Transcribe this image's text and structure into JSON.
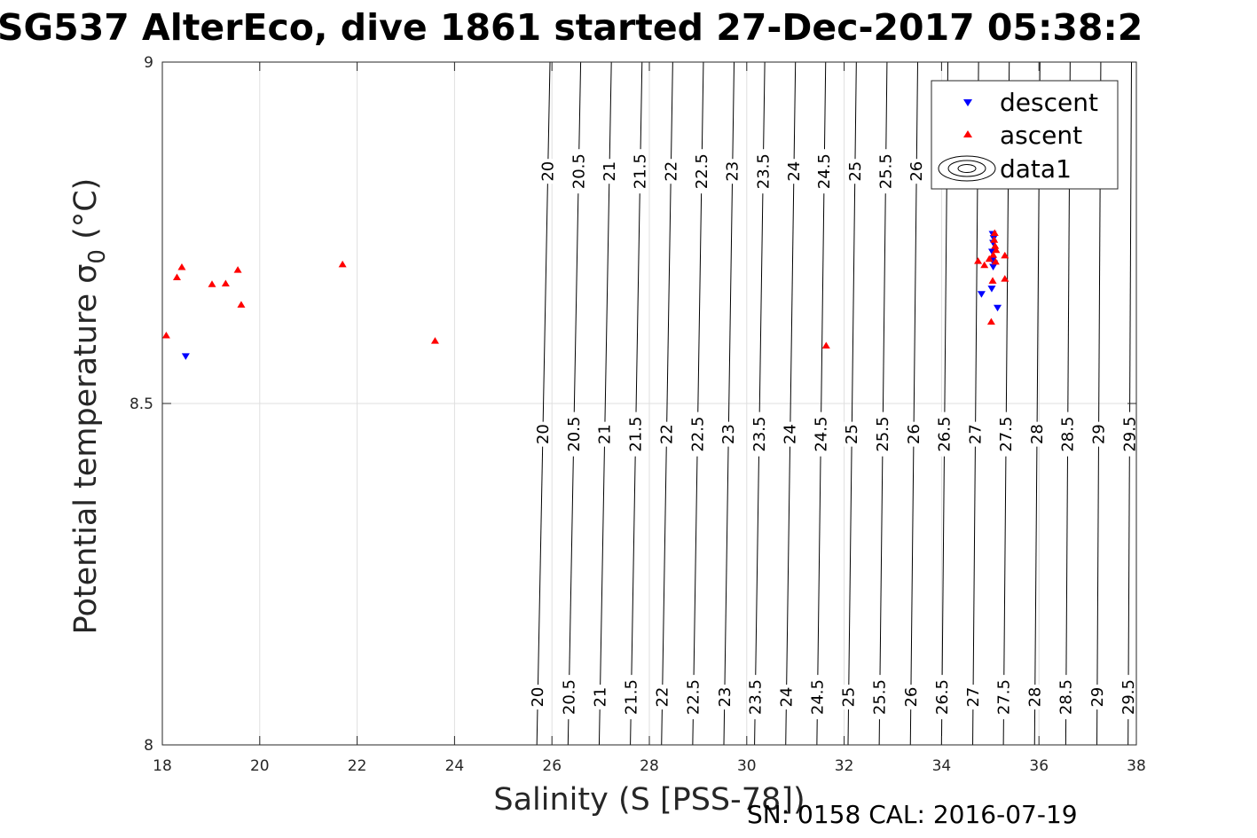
{
  "chart_data": {
    "type": "scatter",
    "title": "SG537 AlterEco, dive 1861 started 27-Dec-2017 05:38:2",
    "xlabel": "Salinity (S [PSS-78])",
    "ylabel_main": "Potential temperature ",
    "ylabel_sigma": "σ",
    "ylabel_sub": "0",
    "ylabel_unit": " (°C)",
    "xlim": [
      18,
      38
    ],
    "ylim": [
      8,
      9
    ],
    "xticks": [
      18,
      20,
      22,
      24,
      26,
      28,
      30,
      32,
      34,
      36,
      38
    ],
    "xtick_labels": [
      "18",
      "20",
      "22",
      "24",
      "26",
      "28",
      "30",
      "32",
      "34",
      "36",
      "38"
    ],
    "yticks": [
      8,
      8.5,
      9
    ],
    "ytick_labels": [
      "8",
      "8.5",
      "9"
    ],
    "grid": true,
    "legend_placement": "top-right",
    "footnote": "SN: 0158  CAL: 2016-07-19",
    "contours": {
      "levels": [
        "20",
        "20.5",
        "21",
        "21.5",
        "22",
        "22.5",
        "23",
        "23.5",
        "24",
        "24.5",
        "25",
        "25.5",
        "26",
        "26.5",
        "27",
        "27.5",
        "28",
        "28.5",
        "29",
        "29.5"
      ],
      "salinity_at_t8": [
        25.69,
        26.33,
        26.97,
        27.61,
        28.25,
        28.89,
        29.53,
        30.16,
        30.8,
        31.44,
        32.08,
        32.72,
        33.36,
        34.0,
        34.64,
        35.27,
        35.91,
        36.55,
        37.19,
        37.83
      ],
      "salinity_at_t9": [
        25.96,
        26.59,
        27.22,
        27.85,
        28.48,
        29.11,
        29.74,
        30.37,
        31.0,
        31.62,
        32.25,
        32.88,
        33.51,
        34.13,
        34.76,
        35.39,
        36.02,
        36.64,
        37.27,
        37.9
      ],
      "label_rows": [
        {
          "t": 8.07,
          "levels": [
            "20",
            "20.5",
            "21",
            "21.5",
            "22",
            "22.5",
            "23",
            "23.5",
            "24",
            "24.5",
            "25",
            "25.5",
            "26",
            "26.5",
            "27",
            "27.5",
            "28",
            "28.5",
            "29",
            "29.5"
          ]
        },
        {
          "t": 8.455,
          "levels": [
            "20",
            "20.5",
            "21",
            "21.5",
            "22",
            "22.5",
            "23",
            "23.5",
            "24",
            "24.5",
            "25",
            "25.5",
            "26",
            "26.5",
            "27",
            "27.5",
            "28",
            "28.5",
            "29",
            "29.5"
          ]
        },
        {
          "t": 8.84,
          "levels": [
            "20",
            "20.5",
            "21",
            "21.5",
            "22",
            "22.5",
            "23",
            "23.5",
            "24",
            "24.5",
            "25",
            "25.5",
            "26"
          ]
        }
      ]
    },
    "series": [
      {
        "name": "descent",
        "marker": "triangle-down",
        "color": "#0000ff",
        "points": [
          [
            18.48,
            8.569
          ],
          [
            34.82,
            8.66
          ],
          [
            35.03,
            8.668
          ],
          [
            35.15,
            8.64
          ],
          [
            35.06,
            8.7
          ],
          [
            35.08,
            8.705
          ],
          [
            35.05,
            8.71
          ],
          [
            35.04,
            8.722
          ],
          [
            35.06,
            8.735
          ],
          [
            35.05,
            8.748
          ],
          [
            35.07,
            8.742
          ]
        ]
      },
      {
        "name": "ascent",
        "marker": "triangle-up",
        "color": "#ff0000",
        "points": [
          [
            18.08,
            8.6
          ],
          [
            18.3,
            8.685
          ],
          [
            18.4,
            8.7
          ],
          [
            19.02,
            8.675
          ],
          [
            19.3,
            8.676
          ],
          [
            19.55,
            8.696
          ],
          [
            19.62,
            8.645
          ],
          [
            21.7,
            8.704
          ],
          [
            23.6,
            8.592
          ],
          [
            31.63,
            8.585
          ],
          [
            34.75,
            8.709
          ],
          [
            34.88,
            8.703
          ],
          [
            34.98,
            8.712
          ],
          [
            35.02,
            8.62
          ],
          [
            35.05,
            8.68
          ],
          [
            35.08,
            8.74
          ],
          [
            35.1,
            8.731
          ],
          [
            35.12,
            8.725
          ],
          [
            35.06,
            8.718
          ],
          [
            35.09,
            8.75
          ],
          [
            35.3,
            8.717
          ],
          [
            35.3,
            8.683
          ],
          [
            35.11,
            8.708
          ]
        ]
      },
      {
        "name": "data1",
        "marker": "contour"
      }
    ]
  }
}
